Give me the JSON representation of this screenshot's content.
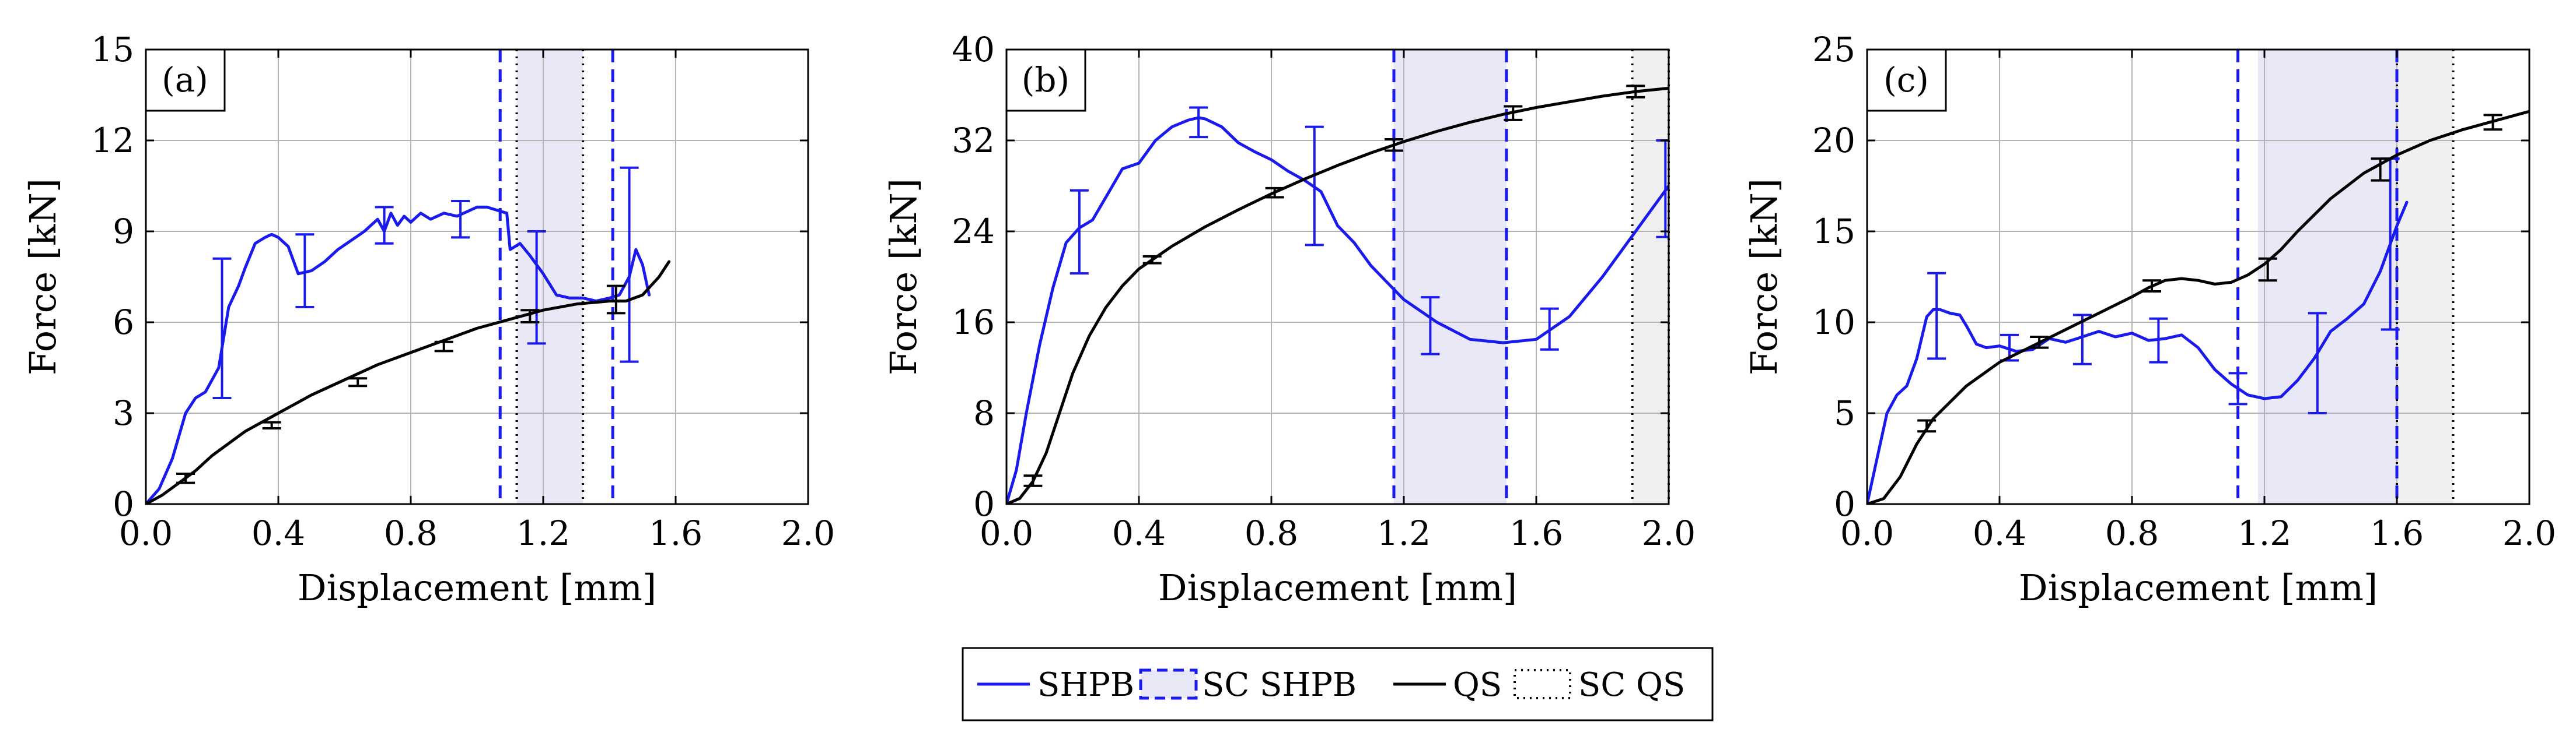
{
  "colors": {
    "shpb": "#1a1aee",
    "qs": "#000000",
    "sc_shpb_band": "#e8e8f7",
    "sc_qs_band": "#f0f0f0",
    "grid": "#b4b4b4"
  },
  "legend": [
    {
      "label": "SHPB",
      "style": "solid",
      "color": "#1a1aee"
    },
    {
      "label": "SC SHPB",
      "style": "dashed-box",
      "color": "#1a1aee"
    },
    {
      "label": "QS",
      "style": "solid",
      "color": "#000000"
    },
    {
      "label": "SC QS",
      "style": "dotted-box",
      "color": "#000000"
    }
  ],
  "chart_data": [
    {
      "type": "line",
      "tag": "(a)",
      "xlabel": "Displacement [mm]",
      "ylabel": "Force [kN]",
      "xlim": [
        0,
        2.0
      ],
      "ylim": [
        0,
        15
      ],
      "xticks": [
        0.0,
        0.4,
        0.8,
        1.2,
        1.6,
        2.0
      ],
      "xtick_labels": [
        "0.0",
        "0.4",
        "0.8",
        "1.2",
        "1.6",
        "2.0"
      ],
      "yticks": [
        0,
        3,
        6,
        9,
        12,
        15
      ],
      "ytick_labels": [
        "0",
        "3",
        "6",
        "9",
        "12",
        "15"
      ],
      "sc_shpb": {
        "range": [
          1.07,
          1.41
        ],
        "band": [
          1.12,
          1.32
        ]
      },
      "sc_qs": {
        "lines": [
          1.12,
          1.32
        ]
      },
      "series": [
        {
          "name": "SHPB",
          "x": [
            0,
            0.04,
            0.08,
            0.12,
            0.15,
            0.18,
            0.22,
            0.25,
            0.28,
            0.3,
            0.33,
            0.36,
            0.38,
            0.4,
            0.43,
            0.46,
            0.5,
            0.54,
            0.58,
            0.62,
            0.66,
            0.7,
            0.72,
            0.74,
            0.76,
            0.78,
            0.8,
            0.83,
            0.86,
            0.9,
            0.94,
            0.98,
            1.0,
            1.03,
            1.06,
            1.09,
            1.1,
            1.13,
            1.16,
            1.2,
            1.24,
            1.28,
            1.32,
            1.36,
            1.4,
            1.43,
            1.46,
            1.48,
            1.5,
            1.52
          ],
          "y": [
            0,
            0.5,
            1.5,
            3.0,
            3.5,
            3.7,
            4.5,
            6.5,
            7.2,
            7.8,
            8.6,
            8.8,
            8.9,
            8.8,
            8.5,
            7.6,
            7.7,
            8.0,
            8.4,
            8.7,
            9.0,
            9.4,
            9.0,
            9.6,
            9.2,
            9.5,
            9.3,
            9.6,
            9.4,
            9.6,
            9.5,
            9.7,
            9.8,
            9.8,
            9.7,
            9.6,
            8.4,
            8.6,
            8.2,
            7.6,
            6.9,
            6.8,
            6.8,
            6.7,
            6.8,
            6.9,
            7.5,
            8.4,
            7.9,
            6.9
          ],
          "error_bars": [
            {
              "x": 0.23,
              "y": 5.8,
              "low": 3.5,
              "high": 8.1
            },
            {
              "x": 0.48,
              "y": 7.7,
              "low": 6.5,
              "high": 8.9
            },
            {
              "x": 0.72,
              "y": 9.2,
              "low": 8.6,
              "high": 9.8
            },
            {
              "x": 0.95,
              "y": 9.4,
              "low": 8.8,
              "high": 10.0
            },
            {
              "x": 1.18,
              "y": 7.2,
              "low": 5.3,
              "high": 9.0
            },
            {
              "x": 1.46,
              "y": 7.9,
              "low": 4.7,
              "high": 11.1
            }
          ]
        },
        {
          "name": "QS",
          "x": [
            0,
            0.05,
            0.1,
            0.15,
            0.2,
            0.3,
            0.4,
            0.5,
            0.6,
            0.7,
            0.8,
            0.9,
            1.0,
            1.1,
            1.2,
            1.3,
            1.4,
            1.45,
            1.5,
            1.55,
            1.58
          ],
          "y": [
            0,
            0.3,
            0.7,
            1.1,
            1.6,
            2.4,
            3.0,
            3.6,
            4.1,
            4.6,
            5.0,
            5.4,
            5.8,
            6.1,
            6.4,
            6.6,
            6.7,
            6.7,
            6.9,
            7.5,
            8.0
          ],
          "error_bars": [
            {
              "x": 0.12,
              "y": 0.85,
              "low": 0.7,
              "high": 1.0
            },
            {
              "x": 0.38,
              "y": 2.6,
              "low": 2.5,
              "high": 2.7
            },
            {
              "x": 0.64,
              "y": 4.0,
              "low": 3.9,
              "high": 4.15
            },
            {
              "x": 0.9,
              "y": 5.2,
              "low": 5.05,
              "high": 5.35
            },
            {
              "x": 1.16,
              "y": 6.2,
              "low": 6.0,
              "high": 6.4
            },
            {
              "x": 1.42,
              "y": 6.7,
              "low": 6.3,
              "high": 7.2
            }
          ]
        }
      ]
    },
    {
      "type": "line",
      "tag": "(b)",
      "xlabel": "Displacement [mm]",
      "ylabel": "Force [kN]",
      "xlim": [
        0,
        2.0
      ],
      "ylim": [
        0,
        40
      ],
      "xticks": [
        0.0,
        0.4,
        0.8,
        1.2,
        1.6,
        2.0
      ],
      "xtick_labels": [
        "0.0",
        "0.4",
        "0.8",
        "1.2",
        "1.6",
        "2.0"
      ],
      "yticks": [
        0,
        8,
        16,
        24,
        32,
        40
      ],
      "ytick_labels": [
        "0",
        "8",
        "16",
        "24",
        "32",
        "40"
      ],
      "sc_shpb": {
        "range": [
          1.17,
          1.51
        ],
        "band": [
          1.17,
          1.51
        ]
      },
      "sc_qs": {
        "lines": [
          1.89,
          2.0
        ],
        "band": [
          1.89,
          2.0
        ]
      },
      "series": [
        {
          "name": "SHPB",
          "x": [
            0,
            0.03,
            0.06,
            0.1,
            0.14,
            0.18,
            0.22,
            0.26,
            0.3,
            0.35,
            0.4,
            0.45,
            0.5,
            0.55,
            0.58,
            0.6,
            0.65,
            0.7,
            0.75,
            0.8,
            0.85,
            0.9,
            0.95,
            1.0,
            1.05,
            1.1,
            1.15,
            1.2,
            1.3,
            1.4,
            1.5,
            1.6,
            1.7,
            1.8,
            1.9,
            2.0
          ],
          "y": [
            0,
            3,
            8,
            14,
            19,
            23,
            24.3,
            25,
            27,
            29.5,
            30,
            32,
            33.2,
            33.8,
            34,
            33.9,
            33.2,
            31.8,
            31,
            30.3,
            29.3,
            28.5,
            27.5,
            24.5,
            23,
            21,
            19.5,
            18,
            16,
            14.5,
            14.2,
            14.5,
            16.5,
            20,
            24,
            28
          ],
          "error_bars": [
            {
              "x": 0.22,
              "y": 24.0,
              "low": 20.3,
              "high": 27.6
            },
            {
              "x": 0.58,
              "y": 33.6,
              "low": 32.3,
              "high": 34.9
            },
            {
              "x": 0.93,
              "y": 28.0,
              "low": 22.8,
              "high": 33.2
            },
            {
              "x": 1.28,
              "y": 15.7,
              "low": 13.2,
              "high": 18.2
            },
            {
              "x": 1.64,
              "y": 15.4,
              "low": 13.6,
              "high": 17.2
            },
            {
              "x": 1.99,
              "y": 27.0,
              "low": 23.5,
              "high": 32.0
            }
          ]
        },
        {
          "name": "QS",
          "x": [
            0,
            0.04,
            0.08,
            0.12,
            0.16,
            0.2,
            0.25,
            0.3,
            0.35,
            0.4,
            0.45,
            0.5,
            0.6,
            0.7,
            0.8,
            0.9,
            1.0,
            1.1,
            1.2,
            1.3,
            1.4,
            1.5,
            1.6,
            1.7,
            1.8,
            1.9,
            2.0
          ],
          "y": [
            0,
            0.5,
            2,
            4.5,
            8,
            11.5,
            14.8,
            17.3,
            19.2,
            20.7,
            21.7,
            22.7,
            24.4,
            25.9,
            27.3,
            28.6,
            29.8,
            30.9,
            31.9,
            32.8,
            33.6,
            34.3,
            34.9,
            35.4,
            35.9,
            36.3,
            36.6
          ],
          "error_bars": [
            {
              "x": 0.08,
              "y": 2.0,
              "low": 1.6,
              "high": 2.5
            },
            {
              "x": 0.44,
              "y": 21.5,
              "low": 21.2,
              "high": 21.8
            },
            {
              "x": 0.81,
              "y": 27.4,
              "low": 27.0,
              "high": 27.8
            },
            {
              "x": 1.17,
              "y": 31.6,
              "low": 31.1,
              "high": 32.1
            },
            {
              "x": 1.53,
              "y": 34.4,
              "low": 33.8,
              "high": 35.0
            },
            {
              "x": 1.9,
              "y": 36.3,
              "low": 35.8,
              "high": 36.8
            }
          ]
        }
      ]
    },
    {
      "type": "line",
      "tag": "(c)",
      "xlabel": "Displacement [mm]",
      "ylabel": "Force [kN]",
      "xlim": [
        0,
        2.0
      ],
      "ylim": [
        0,
        25
      ],
      "xticks": [
        0.0,
        0.4,
        0.8,
        1.2,
        1.6,
        2.0
      ],
      "xtick_labels": [
        "0.0",
        "0.4",
        "0.8",
        "1.2",
        "1.6",
        "2.0"
      ],
      "yticks": [
        0,
        5,
        10,
        15,
        20,
        25
      ],
      "ytick_labels": [
        "0",
        "5",
        "10",
        "15",
        "20",
        "25"
      ],
      "sc_shpb": {
        "range": [
          1.12,
          1.6
        ],
        "band": [
          1.18,
          1.6
        ]
      },
      "sc_qs": {
        "lines": [
          1.6,
          1.77
        ],
        "band": [
          1.6,
          1.77
        ]
      },
      "series": [
        {
          "name": "SHPB",
          "x": [
            0,
            0.03,
            0.06,
            0.09,
            0.12,
            0.15,
            0.18,
            0.2,
            0.22,
            0.25,
            0.28,
            0.3,
            0.33,
            0.36,
            0.4,
            0.45,
            0.5,
            0.55,
            0.6,
            0.65,
            0.7,
            0.75,
            0.8,
            0.85,
            0.9,
            0.95,
            1.0,
            1.05,
            1.1,
            1.15,
            1.2,
            1.25,
            1.3,
            1.35,
            1.4,
            1.45,
            1.5,
            1.55,
            1.6,
            1.63
          ],
          "y": [
            0,
            2.5,
            5,
            6,
            6.5,
            8,
            10.3,
            10.7,
            10.7,
            10.5,
            10.4,
            9.8,
            8.8,
            8.6,
            8.7,
            8.4,
            8.5,
            9.1,
            8.9,
            9.2,
            9.5,
            9.2,
            9.4,
            9.0,
            9.1,
            9.3,
            8.6,
            7.4,
            6.6,
            6.0,
            5.8,
            5.9,
            6.8,
            8.0,
            9.5,
            10.2,
            11.0,
            12.8,
            15.3,
            16.6
          ],
          "error_bars": [
            {
              "x": 0.21,
              "y": 10.3,
              "low": 8.0,
              "high": 12.7
            },
            {
              "x": 0.43,
              "y": 8.6,
              "low": 7.9,
              "high": 9.3
            },
            {
              "x": 0.65,
              "y": 9.1,
              "low": 7.7,
              "high": 10.4
            },
            {
              "x": 0.88,
              "y": 9.1,
              "low": 7.8,
              "high": 10.2
            },
            {
              "x": 1.12,
              "y": 6.3,
              "low": 5.5,
              "high": 7.2
            },
            {
              "x": 1.36,
              "y": 7.7,
              "low": 5.0,
              "high": 10.5
            },
            {
              "x": 1.58,
              "y": 14.0,
              "low": 9.6,
              "high": 19.0
            }
          ]
        },
        {
          "name": "QS",
          "x": [
            0,
            0.05,
            0.1,
            0.15,
            0.2,
            0.3,
            0.4,
            0.5,
            0.6,
            0.7,
            0.8,
            0.85,
            0.9,
            0.95,
            1.0,
            1.05,
            1.1,
            1.15,
            1.2,
            1.25,
            1.3,
            1.4,
            1.5,
            1.6,
            1.7,
            1.8,
            1.9,
            2.0
          ],
          "y": [
            0,
            0.3,
            1.5,
            3.3,
            4.7,
            6.5,
            7.8,
            8.7,
            9.6,
            10.5,
            11.4,
            11.9,
            12.3,
            12.4,
            12.3,
            12.1,
            12.2,
            12.6,
            13.2,
            14.0,
            15.0,
            16.8,
            18.2,
            19.2,
            20.0,
            20.6,
            21.1,
            21.6
          ],
          "error_bars": [
            {
              "x": 0.18,
              "y": 4.3,
              "low": 4.0,
              "high": 4.6
            },
            {
              "x": 0.52,
              "y": 8.9,
              "low": 8.6,
              "high": 9.2
            },
            {
              "x": 0.86,
              "y": 12.0,
              "low": 11.7,
              "high": 12.3
            },
            {
              "x": 1.21,
              "y": 12.9,
              "low": 12.3,
              "high": 13.5
            },
            {
              "x": 1.55,
              "y": 18.4,
              "low": 17.8,
              "high": 19.0
            },
            {
              "x": 1.89,
              "y": 21.0,
              "low": 20.6,
              "high": 21.4
            }
          ]
        }
      ]
    }
  ]
}
